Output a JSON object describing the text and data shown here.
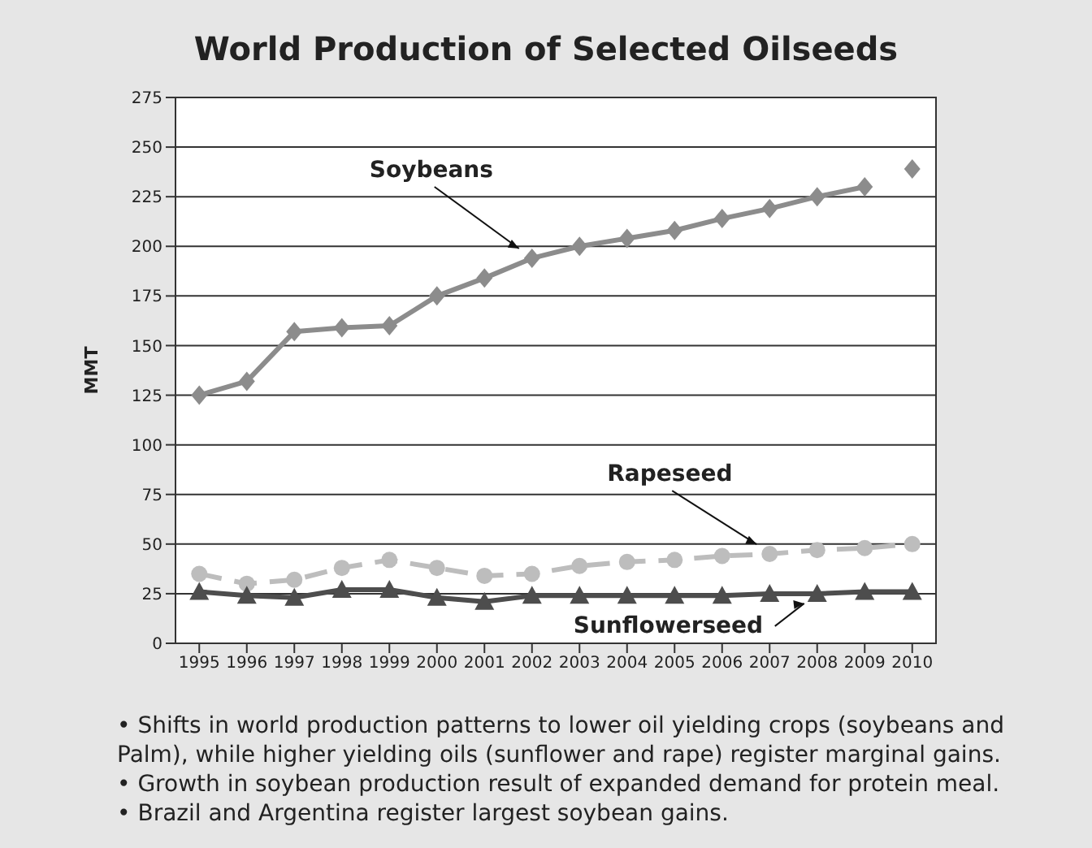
{
  "chart_data": {
    "type": "line",
    "title": "World Production of Selected Oilseeds",
    "ylabel": "MMT",
    "categories": [
      "1995",
      "1996",
      "1997",
      "1998",
      "1999",
      "2000",
      "2001",
      "2002",
      "2003",
      "2004",
      "2005",
      "2006",
      "2007",
      "2008",
      "2009",
      "2010"
    ],
    "series": [
      {
        "name": "Soybeans",
        "color": "#8c8c8c",
        "marker": "diamond",
        "line_style": "solid",
        "values": [
          125,
          132,
          157,
          159,
          160,
          175,
          184,
          194,
          200,
          204,
          208,
          214,
          219,
          225,
          230,
          null
        ]
      },
      {
        "type": "scatter",
        "color": "#8c8c8c",
        "marker": "diamond",
        "values": [
          null,
          null,
          null,
          null,
          null,
          null,
          null,
          null,
          null,
          null,
          null,
          null,
          null,
          null,
          null,
          239
        ]
      },
      {
        "name": "Rapeseed",
        "color": "#bdbdbd",
        "marker": "circle",
        "line_style": "dashed",
        "values": [
          35,
          30,
          32,
          38,
          42,
          38,
          34,
          35,
          39,
          41,
          42,
          44,
          45,
          47,
          48,
          50
        ]
      },
      {
        "name": "Sunflowerseed",
        "color": "#4d4d4d",
        "marker": "triangle",
        "line_style": "solid",
        "values": [
          26,
          24,
          23,
          27,
          27,
          23,
          21,
          24,
          24,
          24,
          24,
          24,
          25,
          25,
          26,
          26
        ]
      }
    ],
    "ylim": [
      0,
      275
    ],
    "yticks": [
      0,
      25,
      50,
      75,
      100,
      125,
      150,
      175,
      200,
      225,
      250,
      275
    ],
    "grid": "y",
    "annotations": [
      "• Shifts in world production patterns to lower oil yielding crops (soybeans and Palm), while higher yielding oils (sunflower and rape) register marginal gains.",
      "• Growth in soybean production result of expanded demand for protein meal.",
      "• Brazil and Argentina register largest soybean gains."
    ]
  }
}
